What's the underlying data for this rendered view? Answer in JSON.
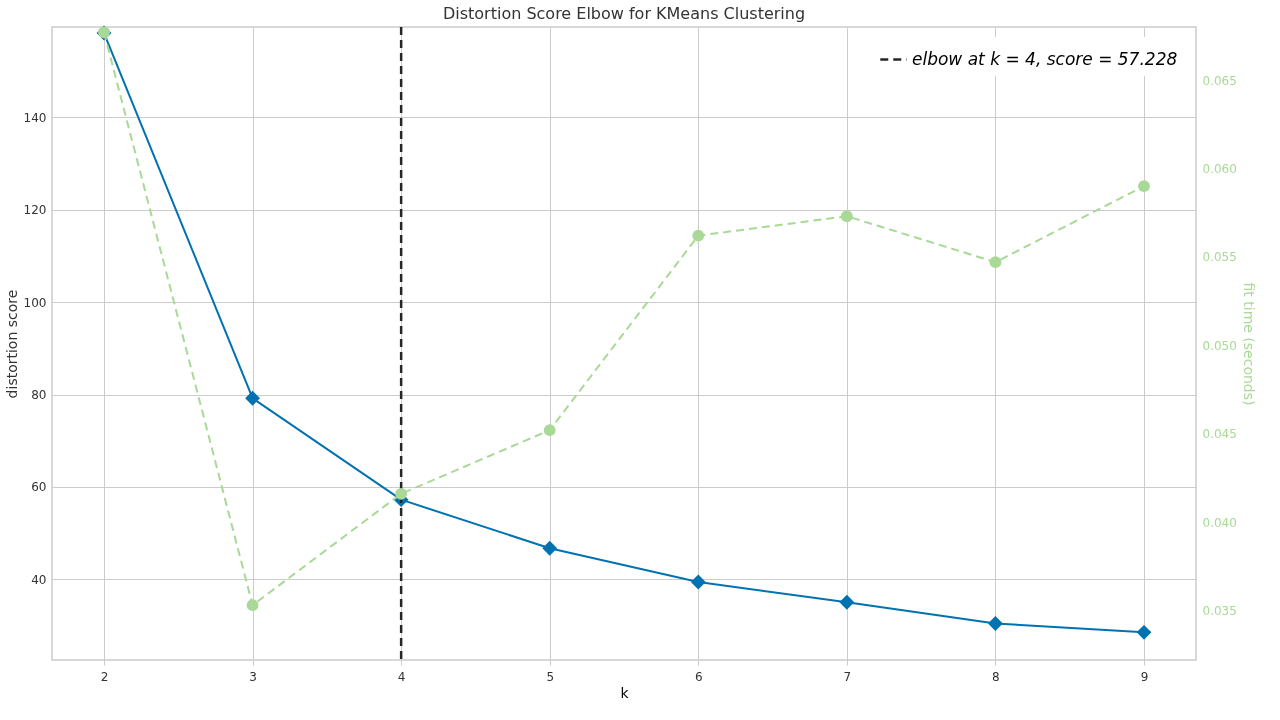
{
  "chart_data": {
    "type": "line",
    "title": "Distortion Score Elbow for KMeans Clustering",
    "xlabel": "k",
    "ylabel": "distortion score",
    "y2label": "fit time (seconds)",
    "x": [
      2,
      3,
      4,
      5,
      6,
      7,
      8,
      9
    ],
    "series": [
      {
        "color": "#0072b2",
        "marker": "diamond",
        "line_style": "solid",
        "values": [
          158.3,
          79.2,
          57.228,
          46.7,
          39.4,
          35.0,
          30.4,
          28.5
        ]
      },
      {
        "color": "#a8d996",
        "marker": "circle",
        "line_style": "dashed",
        "axis": "y2",
        "values": [
          0.0677,
          0.0353,
          0.0416,
          0.0452,
          0.0562,
          0.0573,
          0.0547,
          0.059
        ]
      }
    ],
    "xlim": [
      1.65,
      9.35
    ],
    "xticks": [
      2,
      3,
      4,
      5,
      6,
      7,
      8,
      9
    ],
    "ylim": [
      22.5,
      159.6
    ],
    "yticks": [
      40,
      60,
      80,
      100,
      120,
      140
    ],
    "y2lim": [
      0.0322,
      0.068
    ],
    "y2ticks": [
      {
        "value": 0.035,
        "label": "0.035"
      },
      {
        "value": 0.04,
        "label": "0.040"
      },
      {
        "value": 0.045,
        "label": "0.045"
      },
      {
        "value": 0.05,
        "label": "0.050"
      },
      {
        "value": 0.055,
        "label": "0.055"
      },
      {
        "value": 0.06,
        "label": "0.060"
      },
      {
        "value": 0.065,
        "label": "0.065"
      }
    ],
    "ref_lines": [
      {
        "axis": "x",
        "value": 4,
        "label": "elbow at k = 4, score = 57.228",
        "color": "#262626",
        "line_style": "dashed"
      }
    ],
    "grid": true,
    "legend": "top right"
  }
}
